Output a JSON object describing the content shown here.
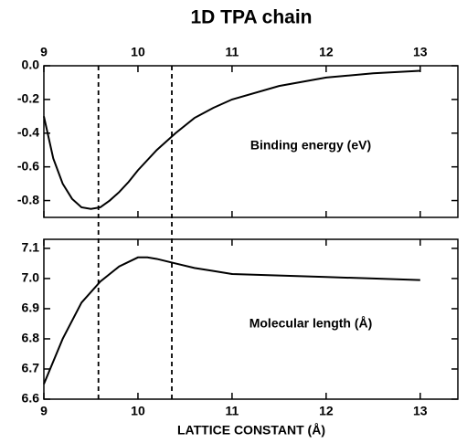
{
  "chart_data": [
    {
      "type": "line",
      "title": "1D TPA chain",
      "annotation": "Binding energy (eV)",
      "x": [
        9,
        9.1,
        9.2,
        9.3,
        9.4,
        9.5,
        9.6,
        9.7,
        9.8,
        9.9,
        10,
        10.2,
        10.4,
        10.6,
        10.8,
        11,
        11.5,
        12,
        12.5,
        13
      ],
      "series": [
        {
          "name": "Binding energy",
          "color": "#000000",
          "values": [
            -0.3,
            -0.55,
            -0.7,
            -0.79,
            -0.84,
            -0.85,
            -0.84,
            -0.8,
            -0.75,
            -0.69,
            -0.62,
            -0.5,
            -0.4,
            -0.31,
            -0.25,
            -0.2,
            -0.12,
            -0.07,
            -0.045,
            -0.03
          ]
        }
      ],
      "xlim": [
        9,
        13.4
      ],
      "ylim": [
        -0.9,
        0
      ],
      "xticks": [
        9,
        10,
        11,
        12,
        13
      ],
      "yticks": [
        {
          "value": 0,
          "label": "0.0"
        },
        -0.2,
        -0.4,
        -0.6,
        -0.8
      ],
      "vlines": [
        9.58,
        10.36
      ]
    },
    {
      "type": "line",
      "annotation": "Molecular length (Å)",
      "xlabel": "LATTICE CONSTANT (Å)",
      "x": [
        9,
        9.2,
        9.4,
        9.6,
        9.8,
        10,
        10.1,
        10.2,
        10.4,
        10.6,
        10.8,
        11,
        11.5,
        12,
        12.5,
        13
      ],
      "series": [
        {
          "name": "Molecular length",
          "color": "#000000",
          "values": [
            6.65,
            6.8,
            6.92,
            6.99,
            7.04,
            7.07,
            7.07,
            7.065,
            7.05,
            7.035,
            7.025,
            7.015,
            7.01,
            7.005,
            7.0,
            6.995
          ]
        }
      ],
      "xlim": [
        9,
        13.4
      ],
      "ylim": [
        6.6,
        7.13
      ],
      "xticks": [
        9,
        10,
        11,
        12,
        13
      ],
      "yticks": [
        7.1,
        {
          "value": 7.0,
          "label": "7.0"
        },
        6.9,
        6.8,
        6.7,
        6.6
      ]
    }
  ]
}
